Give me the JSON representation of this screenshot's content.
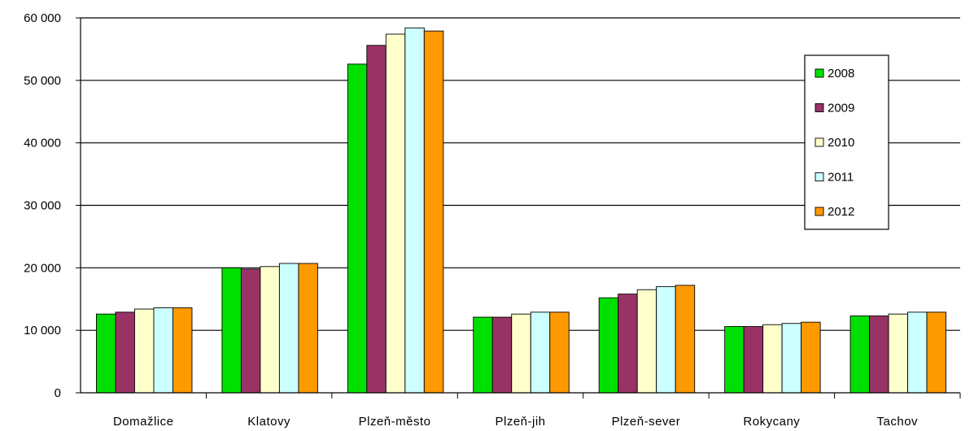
{
  "chart_data": {
    "type": "bar",
    "categories": [
      "Domažlice",
      "Klatovy",
      "Plzeň-město",
      "Plzeň-jih",
      "Plzeň-sever",
      "Rokycany",
      "Tachov"
    ],
    "series": [
      {
        "name": "2008",
        "color": "#00e000",
        "values": [
          12600,
          20000,
          52600,
          12100,
          15200,
          10600,
          12300
        ]
      },
      {
        "name": "2009",
        "color": "#993366",
        "values": [
          12900,
          19800,
          55600,
          12100,
          15800,
          10600,
          12300
        ]
      },
      {
        "name": "2010",
        "color": "#ffffcc",
        "values": [
          13400,
          20200,
          57400,
          12600,
          16500,
          10900,
          12600
        ]
      },
      {
        "name": "2011",
        "color": "#ccffff",
        "values": [
          13600,
          20700,
          58400,
          12900,
          17000,
          11100,
          12900
        ]
      },
      {
        "name": "2012",
        "color": "#ff9900",
        "values": [
          13600,
          20700,
          57900,
          12900,
          17200,
          11300,
          12900
        ]
      }
    ],
    "yticks": [
      "0",
      "10 000",
      "20 000",
      "30 000",
      "40 000",
      "50 000",
      "60 000"
    ],
    "ylim": [
      0,
      60000
    ],
    "grid": true,
    "legend_position": "right"
  }
}
